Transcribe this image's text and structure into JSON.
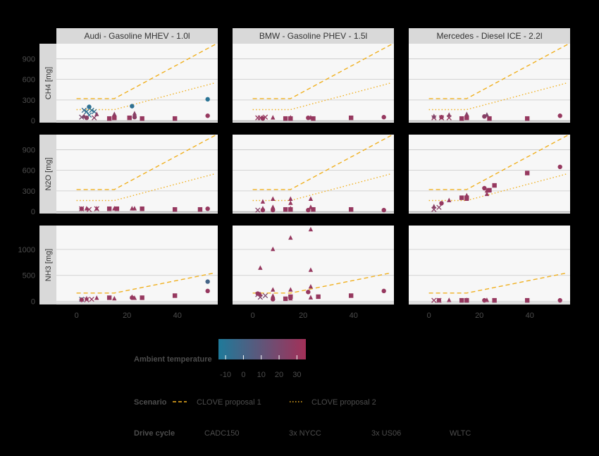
{
  "chart_data": {
    "type": "scatter",
    "title": "",
    "facets": {
      "columns": [
        "Audi - Gasoline MHEV - 1.0l",
        "BMW - Gasoline PHEV - 1.5l",
        "Mercedes - Diesel ICE - 2.2l"
      ],
      "rows": [
        {
          "label": "CH4 [mg]",
          "ylim": [
            -30,
            1120
          ],
          "yticks": [
            0,
            300,
            600,
            900
          ]
        },
        {
          "label": "N2O [mg]",
          "ylim": [
            -30,
            1120
          ],
          "yticks": [
            0,
            300,
            600,
            900
          ]
        },
        {
          "label": "NH3 [mg]",
          "ylim": [
            -60,
            1460
          ],
          "yticks": [
            0,
            500,
            1000
          ]
        }
      ]
    },
    "x_axis": {
      "xlim": [
        -8,
        56
      ],
      "ticks": [
        0,
        20,
        40
      ]
    },
    "lines": [
      {
        "name": "CLOVE proposal 1",
        "style": "dashed",
        "color": "#f0b020",
        "points": {
          "CH4": [
            [
              0,
              320
            ],
            [
              15,
              320
            ],
            [
              55,
              1110
            ]
          ],
          "N2O": [
            [
              0,
              320
            ],
            [
              15,
              320
            ],
            [
              55,
              1110
            ]
          ],
          "NH3": [
            [
              0,
              160
            ],
            [
              15,
              160
            ],
            [
              55,
              550
            ]
          ]
        }
      },
      {
        "name": "CLOVE proposal 2",
        "style": "dotted",
        "color": "#f0b020",
        "points": {
          "CH4": [
            [
              0,
              160
            ],
            [
              15,
              160
            ],
            [
              55,
              550
            ]
          ],
          "N2O": [
            [
              0,
              160
            ],
            [
              15,
              160
            ],
            [
              55,
              550
            ]
          ]
        }
      }
    ],
    "points": [
      [
        0,
        0,
        2,
        50,
        "x",
        18
      ],
      [
        0,
        0,
        3,
        150,
        "x",
        -5
      ],
      [
        0,
        0,
        4,
        130,
        "x",
        -8
      ],
      [
        0,
        0,
        5,
        80,
        "x",
        -8
      ],
      [
        0,
        0,
        6,
        150,
        "x",
        -10
      ],
      [
        0,
        0,
        7,
        130,
        "x",
        -7
      ],
      [
        0,
        0,
        7,
        40,
        "x",
        25
      ],
      [
        0,
        0,
        3,
        60,
        "triangle",
        22
      ],
      [
        0,
        0,
        8,
        90,
        "triangle",
        25
      ],
      [
        0,
        0,
        15,
        90,
        "triangle",
        25
      ],
      [
        0,
        0,
        23,
        100,
        "triangle",
        25
      ],
      [
        0,
        0,
        4,
        40,
        "circle",
        25
      ],
      [
        0,
        0,
        5,
        200,
        "circle",
        -8
      ],
      [
        0,
        0,
        22,
        210,
        "circle",
        -8
      ],
      [
        0,
        0,
        23,
        50,
        "circle",
        25
      ],
      [
        0,
        0,
        52,
        310,
        "circle",
        -10
      ],
      [
        0,
        0,
        52,
        70,
        "circle",
        30
      ],
      [
        0,
        0,
        13,
        30,
        "square",
        30
      ],
      [
        0,
        0,
        15,
        40,
        "square",
        30
      ],
      [
        0,
        0,
        21,
        40,
        "square",
        30
      ],
      [
        0,
        0,
        26,
        30,
        "square",
        30
      ],
      [
        0,
        0,
        39,
        30,
        "square",
        30
      ],
      [
        0,
        1,
        2,
        40,
        "x",
        30
      ],
      [
        0,
        1,
        5,
        30,
        "x",
        30
      ],
      [
        0,
        1,
        8,
        40,
        "x",
        30
      ],
      [
        0,
        1,
        4,
        40,
        "triangle",
        30
      ],
      [
        0,
        1,
        8,
        40,
        "triangle",
        30
      ],
      [
        0,
        1,
        15,
        40,
        "triangle",
        30
      ],
      [
        0,
        1,
        22,
        40,
        "triangle",
        30
      ],
      [
        0,
        1,
        23,
        40,
        "triangle",
        30
      ],
      [
        0,
        1,
        2,
        40,
        "circle",
        30
      ],
      [
        0,
        1,
        52,
        40,
        "circle",
        30
      ],
      [
        0,
        1,
        13,
        40,
        "square",
        30
      ],
      [
        0,
        1,
        16,
        40,
        "square",
        30
      ],
      [
        0,
        1,
        26,
        40,
        "square",
        30
      ],
      [
        0,
        1,
        39,
        30,
        "square",
        30
      ],
      [
        0,
        1,
        49,
        30,
        "square",
        30
      ],
      [
        0,
        2,
        2,
        40,
        "x",
        0
      ],
      [
        0,
        2,
        4,
        30,
        "x",
        30
      ],
      [
        0,
        2,
        6,
        40,
        "x",
        30
      ],
      [
        0,
        2,
        4,
        50,
        "triangle",
        30
      ],
      [
        0,
        2,
        8,
        60,
        "triangle",
        30
      ],
      [
        0,
        2,
        15,
        50,
        "triangle",
        30
      ],
      [
        0,
        2,
        22,
        80,
        "triangle",
        30
      ],
      [
        0,
        2,
        23,
        60,
        "triangle",
        30
      ],
      [
        0,
        2,
        2,
        30,
        "circle",
        30
      ],
      [
        0,
        2,
        22,
        70,
        "circle",
        30
      ],
      [
        0,
        2,
        52,
        380,
        "circle",
        0
      ],
      [
        0,
        2,
        52,
        200,
        "circle",
        30
      ],
      [
        0,
        2,
        13,
        70,
        "square",
        30
      ],
      [
        0,
        2,
        26,
        70,
        "square",
        30
      ],
      [
        0,
        2,
        39,
        110,
        "square",
        30
      ],
      [
        1,
        0,
        2,
        40,
        "x",
        30
      ],
      [
        1,
        0,
        3,
        40,
        "x",
        30
      ],
      [
        1,
        0,
        5,
        50,
        "x",
        30
      ],
      [
        1,
        0,
        8,
        40,
        "triangle",
        30
      ],
      [
        1,
        0,
        15,
        40,
        "triangle",
        30
      ],
      [
        1,
        0,
        23,
        40,
        "triangle",
        30
      ],
      [
        1,
        0,
        4,
        30,
        "circle",
        30
      ],
      [
        1,
        0,
        22,
        40,
        "circle",
        30
      ],
      [
        1,
        0,
        52,
        50,
        "circle",
        30
      ],
      [
        1,
        0,
        13,
        30,
        "square",
        30
      ],
      [
        1,
        0,
        15,
        30,
        "square",
        30
      ],
      [
        1,
        0,
        24,
        30,
        "square",
        30
      ],
      [
        1,
        0,
        39,
        40,
        "square",
        30
      ],
      [
        1,
        1,
        2,
        20,
        "x",
        25
      ],
      [
        1,
        1,
        4,
        40,
        "triangle",
        30
      ],
      [
        1,
        1,
        4,
        140,
        "triangle",
        30
      ],
      [
        1,
        1,
        8,
        60,
        "triangle",
        30
      ],
      [
        1,
        1,
        8,
        180,
        "triangle",
        30
      ],
      [
        1,
        1,
        15,
        40,
        "triangle",
        30
      ],
      [
        1,
        1,
        15,
        120,
        "triangle",
        30
      ],
      [
        1,
        1,
        15,
        180,
        "triangle",
        30
      ],
      [
        1,
        1,
        23,
        60,
        "triangle",
        30
      ],
      [
        1,
        1,
        23,
        180,
        "triangle",
        30
      ],
      [
        1,
        1,
        4,
        20,
        "circle",
        30
      ],
      [
        1,
        1,
        8,
        20,
        "circle",
        30
      ],
      [
        1,
        1,
        22,
        20,
        "circle",
        30
      ],
      [
        1,
        1,
        52,
        20,
        "circle",
        30
      ],
      [
        1,
        1,
        13,
        30,
        "square",
        30
      ],
      [
        1,
        1,
        15,
        30,
        "square",
        30
      ],
      [
        1,
        1,
        24,
        30,
        "square",
        30
      ],
      [
        1,
        1,
        39,
        30,
        "square",
        30
      ],
      [
        1,
        2,
        2,
        130,
        "x",
        20
      ],
      [
        1,
        2,
        3,
        80,
        "x",
        20
      ],
      [
        1,
        2,
        5,
        110,
        "x",
        20
      ],
      [
        1,
        2,
        3,
        130,
        "triangle",
        30
      ],
      [
        1,
        2,
        3,
        640,
        "triangle",
        30
      ],
      [
        1,
        2,
        8,
        1000,
        "triangle",
        30
      ],
      [
        1,
        2,
        8,
        220,
        "triangle",
        30
      ],
      [
        1,
        2,
        8,
        100,
        "triangle",
        30
      ],
      [
        1,
        2,
        15,
        1220,
        "triangle",
        30
      ],
      [
        1,
        2,
        15,
        220,
        "triangle",
        30
      ],
      [
        1,
        2,
        15,
        50,
        "triangle",
        30
      ],
      [
        1,
        2,
        23,
        1380,
        "triangle",
        30
      ],
      [
        1,
        2,
        23,
        600,
        "triangle",
        30
      ],
      [
        1,
        2,
        23,
        280,
        "triangle",
        30
      ],
      [
        1,
        2,
        23,
        70,
        "triangle",
        30
      ],
      [
        1,
        2,
        2,
        150,
        "circle",
        30
      ],
      [
        1,
        2,
        8,
        40,
        "circle",
        30
      ],
      [
        1,
        2,
        22,
        180,
        "circle",
        30
      ],
      [
        1,
        2,
        52,
        200,
        "circle",
        30
      ],
      [
        1,
        2,
        13,
        50,
        "square",
        30
      ],
      [
        1,
        2,
        15,
        90,
        "square",
        30
      ],
      [
        1,
        2,
        26,
        90,
        "square",
        30
      ],
      [
        1,
        2,
        39,
        110,
        "square",
        30
      ],
      [
        2,
        0,
        2,
        40,
        "x",
        30
      ],
      [
        2,
        0,
        5,
        40,
        "x",
        30
      ],
      [
        2,
        0,
        8,
        40,
        "x",
        30
      ],
      [
        2,
        0,
        2,
        60,
        "triangle",
        22
      ],
      [
        2,
        0,
        8,
        80,
        "triangle",
        25
      ],
      [
        2,
        0,
        15,
        90,
        "triangle",
        25
      ],
      [
        2,
        0,
        23,
        80,
        "triangle",
        20
      ],
      [
        2,
        0,
        5,
        50,
        "circle",
        30
      ],
      [
        2,
        0,
        22,
        60,
        "circle",
        25
      ],
      [
        2,
        0,
        52,
        70,
        "circle",
        30
      ],
      [
        2,
        0,
        13,
        30,
        "square",
        30
      ],
      [
        2,
        0,
        15,
        40,
        "square",
        30
      ],
      [
        2,
        0,
        24,
        30,
        "square",
        30
      ],
      [
        2,
        0,
        39,
        30,
        "square",
        30
      ],
      [
        2,
        1,
        2,
        30,
        "x",
        25
      ],
      [
        2,
        1,
        4,
        60,
        "x",
        25
      ],
      [
        2,
        1,
        2,
        70,
        "triangle",
        25
      ],
      [
        2,
        1,
        8,
        160,
        "triangle",
        30
      ],
      [
        2,
        1,
        15,
        180,
        "triangle",
        30
      ],
      [
        2,
        1,
        15,
        230,
        "triangle",
        30
      ],
      [
        2,
        1,
        23,
        300,
        "triangle",
        30
      ],
      [
        2,
        1,
        23,
        250,
        "triangle",
        30
      ],
      [
        2,
        1,
        5,
        120,
        "circle",
        30
      ],
      [
        2,
        1,
        22,
        340,
        "circle",
        30
      ],
      [
        2,
        1,
        52,
        650,
        "circle",
        30
      ],
      [
        2,
        1,
        13,
        200,
        "square",
        30
      ],
      [
        2,
        1,
        15,
        200,
        "square",
        30
      ],
      [
        2,
        1,
        24,
        310,
        "square",
        30
      ],
      [
        2,
        1,
        26,
        380,
        "square",
        30
      ],
      [
        2,
        1,
        39,
        560,
        "square",
        30
      ],
      [
        2,
        2,
        2,
        20,
        "x",
        30
      ],
      [
        2,
        2,
        4,
        20,
        "x",
        30
      ],
      [
        2,
        2,
        8,
        20,
        "triangle",
        30
      ],
      [
        2,
        2,
        15,
        20,
        "triangle",
        30
      ],
      [
        2,
        2,
        23,
        20,
        "triangle",
        30
      ],
      [
        2,
        2,
        4,
        20,
        "circle",
        30
      ],
      [
        2,
        2,
        22,
        20,
        "circle",
        30
      ],
      [
        2,
        2,
        52,
        20,
        "circle",
        30
      ],
      [
        2,
        2,
        13,
        20,
        "square",
        30
      ],
      [
        2,
        2,
        15,
        20,
        "square",
        30
      ],
      [
        2,
        2,
        26,
        20,
        "square",
        30
      ],
      [
        2,
        2,
        39,
        20,
        "square",
        30
      ]
    ],
    "point_fields": [
      "column",
      "row",
      "x",
      "y",
      "shape",
      "temperature"
    ],
    "grid": true,
    "legend": {
      "temperature": {
        "title": "Ambient temperature",
        "ticks": [
          "-10",
          "0",
          "10",
          "20",
          "30"
        ],
        "range": [
          -14,
          35
        ],
        "colors": [
          "#1f7a9a",
          "#a33058"
        ]
      },
      "scenario": {
        "title": "Scenario",
        "items": [
          "CLOVE proposal 1",
          "CLOVE proposal 2"
        ]
      },
      "drive_cycle": {
        "title": "Drive cycle",
        "items": [
          "CADC150",
          "3x NYCC",
          "3x US06",
          "WLTC"
        ]
      }
    }
  }
}
